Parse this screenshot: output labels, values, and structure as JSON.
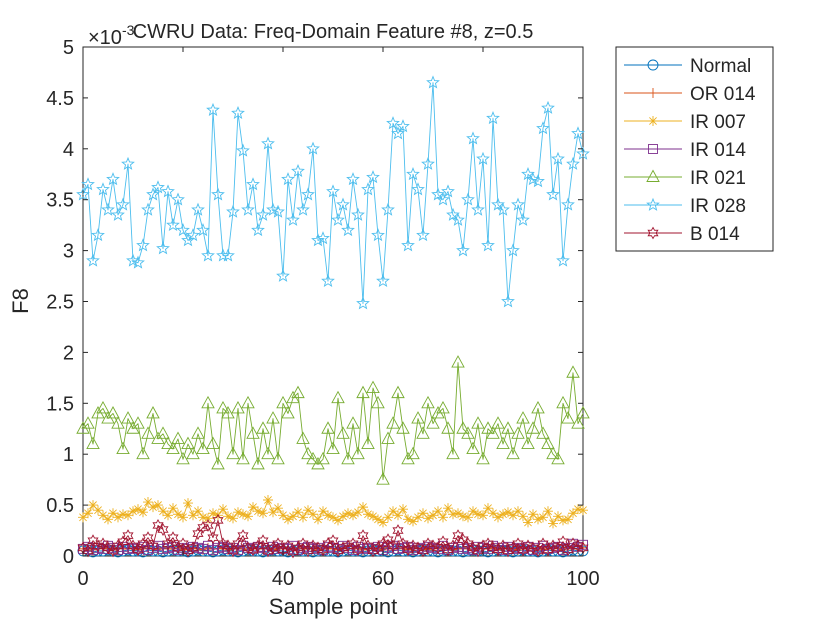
{
  "chart_data": {
    "type": "line",
    "title": "CWRU Data: Freq-Domain Feature #8, z=0.5",
    "xlabel": "Sample point",
    "ylabel": "F8",
    "exponent_label": "×10",
    "exponent_power": "-3",
    "xlim": [
      0,
      100
    ],
    "ylim": [
      0,
      5
    ],
    "xticks": [
      0,
      20,
      40,
      60,
      80,
      100
    ],
    "xtick_labels": [
      "0",
      "20",
      "40",
      "60",
      "80",
      "100"
    ],
    "yticks": [
      0,
      0.5,
      1,
      1.5,
      2,
      2.5,
      3,
      3.5,
      4,
      4.5,
      5
    ],
    "ytick_labels": [
      "0",
      "0.5",
      "1",
      "1.5",
      "2",
      "2.5",
      "3",
      "3.5",
      "4",
      "4.5",
      "5"
    ],
    "grid": false,
    "legend_position": "outside-top-right",
    "series": [
      {
        "name": "Normal",
        "color": "#0072BD",
        "marker": "circle",
        "values": [
          0.05,
          0.06,
          0.04,
          0.05,
          0.05,
          0.06,
          0.05,
          0.04,
          0.05,
          0.06,
          0.05,
          0.05,
          0.04,
          0.06,
          0.05,
          0.05,
          0.04,
          0.05,
          0.06,
          0.05,
          0.05,
          0.04,
          0.05,
          0.06,
          0.05,
          0.05,
          0.04,
          0.05,
          0.06,
          0.05,
          0.05,
          0.04,
          0.05,
          0.06,
          0.05,
          0.05,
          0.04,
          0.05,
          0.06,
          0.05,
          0.05,
          0.04,
          0.05,
          0.06,
          0.05,
          0.05,
          0.04,
          0.05,
          0.06,
          0.05,
          0.05,
          0.04,
          0.05,
          0.06,
          0.05,
          0.05,
          0.04,
          0.05,
          0.06,
          0.05,
          0.05,
          0.04,
          0.05,
          0.06,
          0.05,
          0.05,
          0.04,
          0.05,
          0.06,
          0.05,
          0.05,
          0.04,
          0.05,
          0.06,
          0.05,
          0.05,
          0.04,
          0.05,
          0.06,
          0.05,
          0.05,
          0.04,
          0.05,
          0.06,
          0.05,
          0.05,
          0.04,
          0.05,
          0.06,
          0.05,
          0.05,
          0.04,
          0.05,
          0.06,
          0.05,
          0.05,
          0.04,
          0.05,
          0.06,
          0.05,
          0.05
        ]
      },
      {
        "name": "OR 014",
        "color": "#D95319",
        "marker": "plus",
        "values": [
          0.07,
          0.08,
          0.06,
          0.07,
          0.08,
          0.07,
          0.06,
          0.08,
          0.07,
          0.07,
          0.08,
          0.06,
          0.07,
          0.08,
          0.07,
          0.06,
          0.08,
          0.07,
          0.07,
          0.08,
          0.06,
          0.07,
          0.08,
          0.07,
          0.06,
          0.08,
          0.07,
          0.07,
          0.08,
          0.06,
          0.07,
          0.08,
          0.07,
          0.06,
          0.08,
          0.07,
          0.07,
          0.08,
          0.06,
          0.07,
          0.08,
          0.07,
          0.06,
          0.08,
          0.07,
          0.07,
          0.08,
          0.06,
          0.07,
          0.08,
          0.07,
          0.06,
          0.08,
          0.07,
          0.07,
          0.08,
          0.06,
          0.07,
          0.08,
          0.07,
          0.06,
          0.08,
          0.07,
          0.07,
          0.08,
          0.06,
          0.07,
          0.08,
          0.07,
          0.06,
          0.08,
          0.07,
          0.07,
          0.08,
          0.06,
          0.07,
          0.08,
          0.07,
          0.06,
          0.08,
          0.07,
          0.07,
          0.08,
          0.06,
          0.07,
          0.08,
          0.07,
          0.06,
          0.08,
          0.07,
          0.07,
          0.08,
          0.06,
          0.07,
          0.08,
          0.07,
          0.06,
          0.08,
          0.07,
          0.07,
          0.08
        ]
      },
      {
        "name": "IR 007",
        "color": "#EDB120",
        "marker": "asterisk",
        "values": [
          0.38,
          0.42,
          0.5,
          0.45,
          0.4,
          0.36,
          0.42,
          0.38,
          0.41,
          0.4,
          0.44,
          0.46,
          0.43,
          0.53,
          0.48,
          0.5,
          0.44,
          0.4,
          0.47,
          0.41,
          0.38,
          0.52,
          0.4,
          0.44,
          0.38,
          0.37,
          0.42,
          0.4,
          0.46,
          0.39,
          0.37,
          0.43,
          0.41,
          0.39,
          0.48,
          0.44,
          0.42,
          0.55,
          0.43,
          0.47,
          0.4,
          0.36,
          0.39,
          0.43,
          0.38,
          0.45,
          0.41,
          0.36,
          0.44,
          0.4,
          0.38,
          0.35,
          0.39,
          0.42,
          0.4,
          0.43,
          0.48,
          0.41,
          0.39,
          0.36,
          0.33,
          0.38,
          0.44,
          0.4,
          0.46,
          0.36,
          0.34,
          0.38,
          0.42,
          0.37,
          0.4,
          0.44,
          0.38,
          0.47,
          0.41,
          0.42,
          0.39,
          0.38,
          0.44,
          0.41,
          0.4,
          0.47,
          0.42,
          0.38,
          0.41,
          0.43,
          0.4,
          0.44,
          0.39,
          0.33,
          0.41,
          0.36,
          0.38,
          0.44,
          0.32,
          0.39,
          0.35,
          0.36,
          0.42,
          0.46,
          0.45
        ]
      },
      {
        "name": "IR 014",
        "color": "#7E2F8E",
        "marker": "square",
        "values": [
          0.07,
          0.09,
          0.06,
          0.08,
          0.07,
          0.1,
          0.08,
          0.06,
          0.09,
          0.07,
          0.08,
          0.07,
          0.09,
          0.06,
          0.08,
          0.1,
          0.07,
          0.08,
          0.09,
          0.06,
          0.08,
          0.07,
          0.09,
          0.08,
          0.07,
          0.1,
          0.06,
          0.08,
          0.09,
          0.07,
          0.08,
          0.06,
          0.1,
          0.08,
          0.07,
          0.09,
          0.08,
          0.06,
          0.09,
          0.07,
          0.08,
          0.07,
          0.1,
          0.06,
          0.08,
          0.09,
          0.07,
          0.08,
          0.06,
          0.09,
          0.08,
          0.07,
          0.1,
          0.08,
          0.06,
          0.09,
          0.07,
          0.08,
          0.07,
          0.09,
          0.06,
          0.08,
          0.1,
          0.07,
          0.08,
          0.09,
          0.06,
          0.08,
          0.07,
          0.09,
          0.08,
          0.07,
          0.1,
          0.06,
          0.08,
          0.09,
          0.07,
          0.08,
          0.06,
          0.09,
          0.08,
          0.07,
          0.1,
          0.08,
          0.06,
          0.09,
          0.07,
          0.08,
          0.07,
          0.09,
          0.06,
          0.08,
          0.1,
          0.07,
          0.08,
          0.09,
          0.06,
          0.08,
          0.12,
          0.09,
          0.11
        ]
      },
      {
        "name": "IR 021",
        "color": "#77AC30",
        "marker": "triangle",
        "values": [
          1.25,
          1.3,
          1.1,
          1.4,
          1.45,
          1.35,
          1.4,
          1.3,
          1.05,
          1.35,
          1.25,
          1.3,
          1.0,
          1.2,
          1.4,
          1.15,
          1.2,
          1.1,
          1.05,
          1.15,
          0.95,
          1.1,
          1.0,
          1.2,
          1.05,
          1.5,
          1.1,
          0.9,
          1.45,
          1.4,
          1.0,
          1.45,
          0.95,
          1.5,
          1.2,
          0.9,
          1.25,
          1.0,
          1.35,
          0.95,
          1.5,
          1.4,
          1.55,
          1.6,
          1.15,
          1.0,
          0.95,
          0.9,
          0.95,
          1.25,
          1.05,
          1.55,
          1.2,
          0.95,
          1.3,
          1.0,
          1.6,
          1.1,
          1.65,
          1.5,
          0.75,
          1.15,
          1.3,
          1.6,
          1.25,
          0.95,
          1.0,
          1.35,
          1.2,
          1.5,
          1.3,
          1.4,
          1.45,
          1.25,
          1.0,
          1.9,
          1.25,
          1.2,
          1.05,
          1.3,
          0.95,
          1.25,
          1.2,
          1.3,
          1.1,
          1.25,
          1.0,
          1.2,
          1.35,
          1.1,
          1.25,
          1.45,
          1.2,
          1.1,
          1.0,
          0.95,
          1.5,
          1.35,
          1.8,
          1.3,
          1.4
        ]
      },
      {
        "name": "IR 028",
        "color": "#4DBEEE",
        "marker": "pentagram",
        "values": [
          3.55,
          3.65,
          2.9,
          3.15,
          3.6,
          3.4,
          3.7,
          3.35,
          3.45,
          3.85,
          2.9,
          2.88,
          3.05,
          3.4,
          3.55,
          3.62,
          3.02,
          3.58,
          3.25,
          3.5,
          3.2,
          3.1,
          3.15,
          3.4,
          3.2,
          2.95,
          4.38,
          3.55,
          2.95,
          2.95,
          3.38,
          4.35,
          3.98,
          3.4,
          3.65,
          3.2,
          3.35,
          4.05,
          3.4,
          3.38,
          2.75,
          3.7,
          3.3,
          3.78,
          3.4,
          3.55,
          4.0,
          3.1,
          3.12,
          2.7,
          3.58,
          3.3,
          3.45,
          3.2,
          3.7,
          3.35,
          2.48,
          3.6,
          3.72,
          3.15,
          2.7,
          3.4,
          4.25,
          4.15,
          4.22,
          3.05,
          3.75,
          3.6,
          3.15,
          3.85,
          4.65,
          3.55,
          3.5,
          3.58,
          3.35,
          3.3,
          3.0,
          3.5,
          4.1,
          3.4,
          3.9,
          3.05,
          4.3,
          3.45,
          3.4,
          2.5,
          3.0,
          3.45,
          3.3,
          3.75,
          3.7,
          3.68,
          4.2,
          4.4,
          3.55,
          3.9,
          2.9,
          3.45,
          3.85,
          4.15,
          3.95
        ]
      },
      {
        "name": "B 014",
        "color": "#A2142F",
        "marker": "hexagram",
        "values": [
          0.08,
          0.05,
          0.15,
          0.1,
          0.12,
          0.08,
          0.05,
          0.1,
          0.14,
          0.2,
          0.1,
          0.06,
          0.12,
          0.18,
          0.1,
          0.3,
          0.26,
          0.12,
          0.18,
          0.08,
          0.12,
          0.05,
          0.08,
          0.22,
          0.28,
          0.3,
          0.18,
          0.35,
          0.12,
          0.1,
          0.05,
          0.12,
          0.2,
          0.08,
          0.06,
          0.1,
          0.15,
          0.05,
          0.08,
          0.12,
          0.06,
          0.1,
          0.04,
          0.08,
          0.12,
          0.05,
          0.1,
          0.08,
          0.06,
          0.12,
          0.15,
          0.05,
          0.08,
          0.1,
          0.12,
          0.06,
          0.2,
          0.1,
          0.05,
          0.08,
          0.12,
          0.16,
          0.1,
          0.25,
          0.12,
          0.06,
          0.1,
          0.08,
          0.05,
          0.12,
          0.1,
          0.08,
          0.14,
          0.06,
          0.1,
          0.2,
          0.16,
          0.12,
          0.08,
          0.05,
          0.1,
          0.12,
          0.08,
          0.06,
          0.1,
          0.05,
          0.08,
          0.12,
          0.06,
          0.1,
          0.08,
          0.05,
          0.12,
          0.06,
          0.1,
          0.08,
          0.14,
          0.06,
          0.12,
          0.1,
          0.08
        ]
      }
    ]
  }
}
